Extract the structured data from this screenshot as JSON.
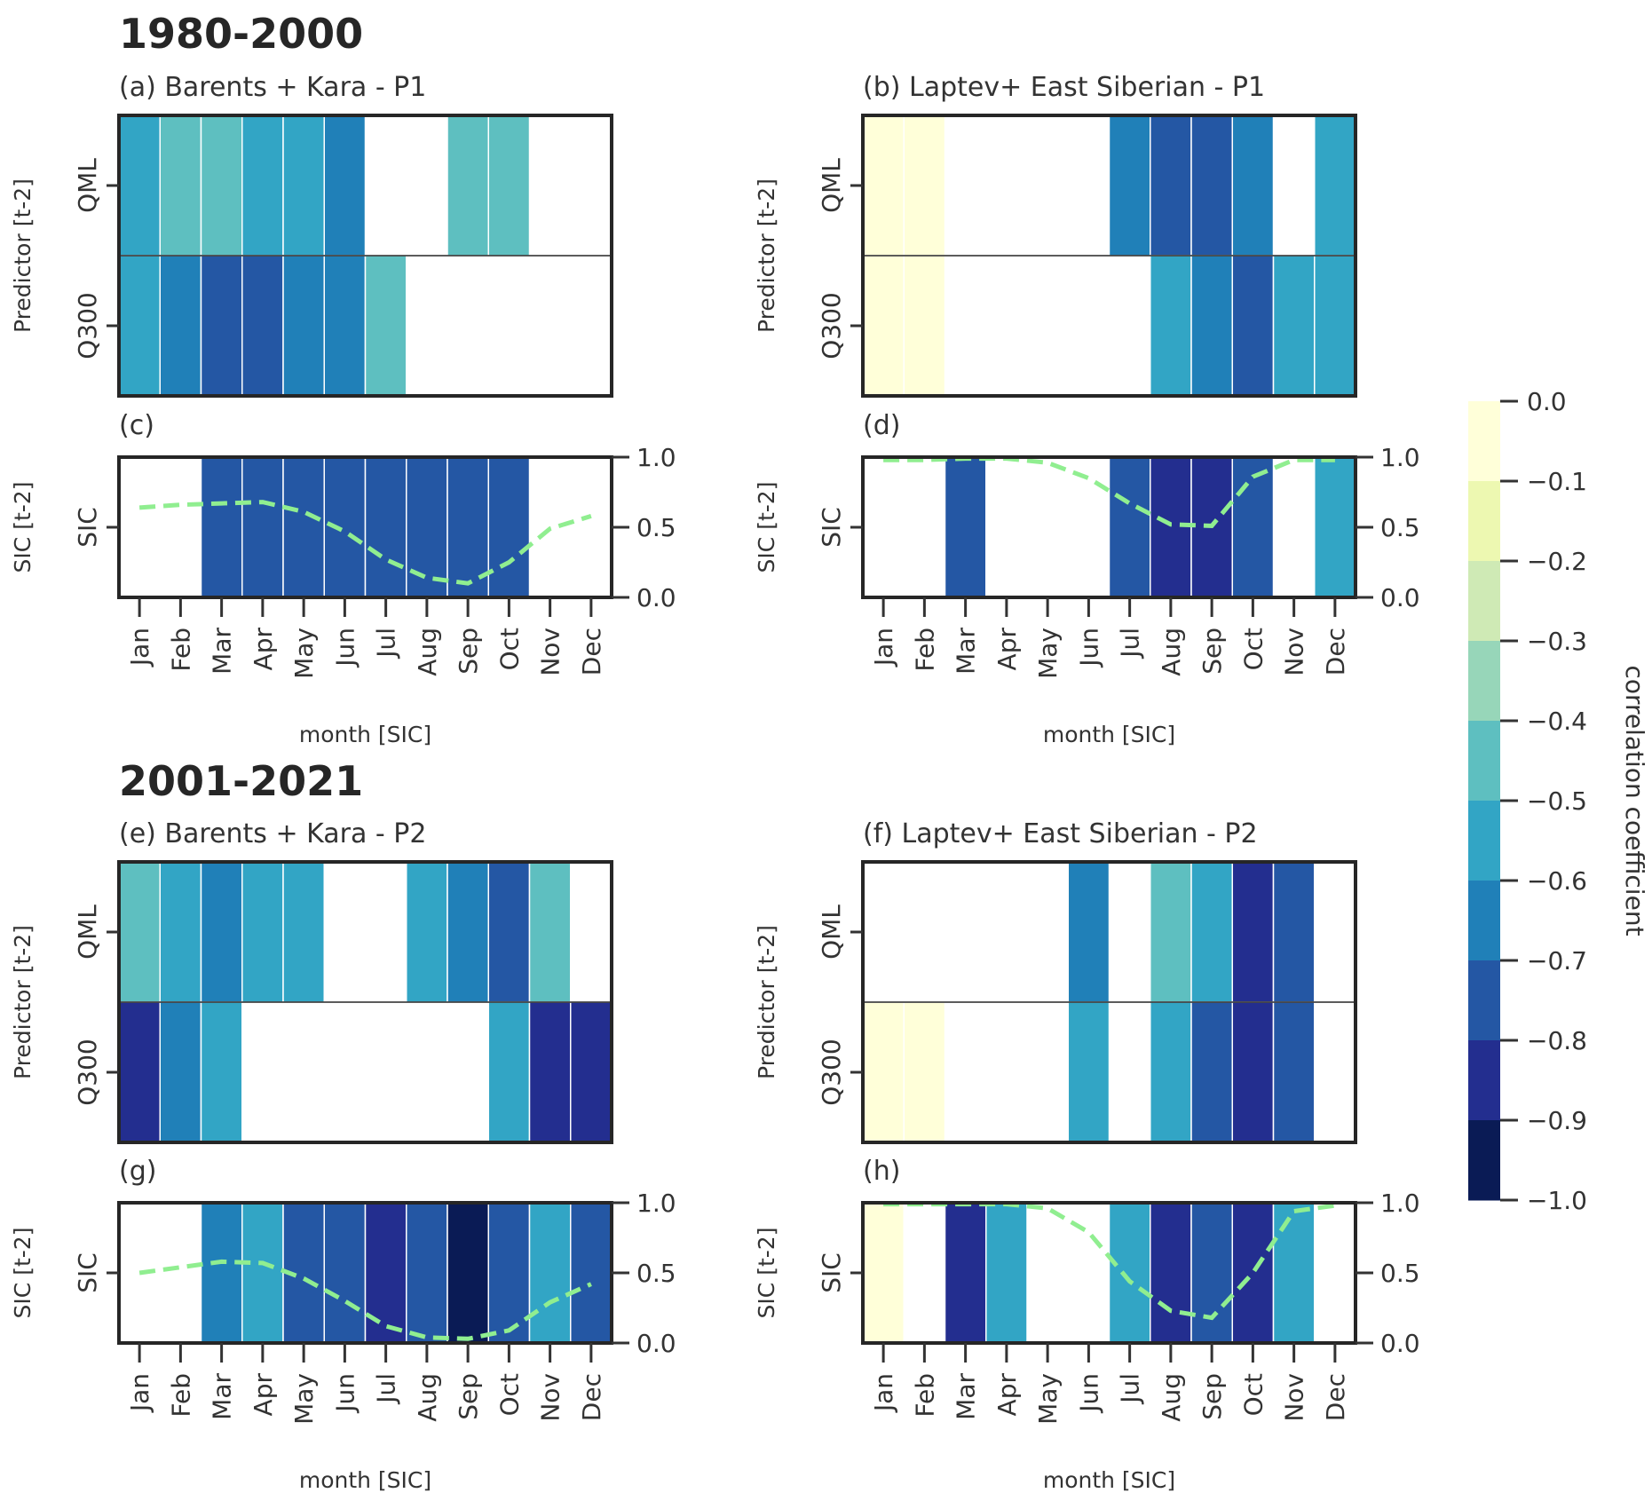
{
  "chart_data": {
    "type": "heatmap",
    "periods": [
      {
        "title": "1980-2000"
      },
      {
        "title": "2001-2021"
      }
    ],
    "months": [
      "Jan",
      "Feb",
      "Mar",
      "Apr",
      "May",
      "Jun",
      "Jul",
      "Aug",
      "Sep",
      "Oct",
      "Nov",
      "Dec"
    ],
    "xlabel": "month [SIC]",
    "colorbar": {
      "label": "correlation coefficient",
      "range": [
        -1.0,
        0.0
      ],
      "ticks": [
        0.0,
        -0.1,
        -0.2,
        -0.3,
        -0.4,
        -0.5,
        -0.6,
        -0.7,
        -0.8,
        -0.9,
        -1.0
      ],
      "tick_labels": [
        "0.0",
        "−0.1",
        "−0.2",
        "−0.3",
        "−0.4",
        "−0.5",
        "−0.6",
        "−0.7",
        "−0.8",
        "−0.9",
        "−1.0"
      ],
      "colors": [
        "#ffffd9",
        "#edf8b1",
        "#cfeab5",
        "#97d6b9",
        "#5ebfc0",
        "#32a5c5",
        "#2080b8",
        "#2457a4",
        "#232e8f",
        "#0a1b55"
      ]
    },
    "line_color": "#90ee90",
    "right_axis": {
      "ticks": [
        0.0,
        0.5,
        1.0
      ],
      "tick_labels": [
        "0.0",
        "0.5",
        "1.0"
      ],
      "range": [
        0,
        1
      ]
    },
    "heatmap_panels": [
      {
        "id": "a",
        "title": "(a) Barents + Kara - P1",
        "ylabel": "Predictor [t-2]",
        "rows": [
          "QML",
          "Q300"
        ],
        "values": [
          [
            -0.55,
            -0.45,
            -0.45,
            -0.55,
            -0.55,
            -0.65,
            null,
            null,
            -0.45,
            -0.45,
            null,
            null
          ],
          [
            -0.55,
            -0.65,
            -0.75,
            -0.75,
            -0.65,
            -0.65,
            -0.45,
            null,
            null,
            null,
            null,
            null
          ]
        ]
      },
      {
        "id": "b",
        "title": "(b) Laptev+ East Siberian - P1",
        "ylabel": "Predictor [t-2]",
        "rows": [
          "QML",
          "Q300"
        ],
        "values": [
          [
            -0.05,
            -0.05,
            null,
            null,
            null,
            null,
            -0.65,
            -0.75,
            -0.75,
            -0.65,
            null,
            -0.55
          ],
          [
            -0.05,
            -0.05,
            null,
            null,
            null,
            null,
            null,
            -0.55,
            -0.65,
            -0.75,
            -0.55,
            -0.55
          ]
        ]
      },
      {
        "id": "e",
        "title": "(e) Barents + Kara - P2",
        "ylabel": "Predictor [t-2]",
        "rows": [
          "QML",
          "Q300"
        ],
        "values": [
          [
            -0.45,
            -0.55,
            -0.65,
            -0.55,
            -0.55,
            null,
            null,
            -0.55,
            -0.65,
            -0.75,
            -0.45,
            null
          ],
          [
            -0.85,
            -0.65,
            -0.55,
            null,
            null,
            null,
            null,
            null,
            null,
            -0.55,
            -0.85,
            -0.85
          ]
        ]
      },
      {
        "id": "f",
        "title": "(f) Laptev+ East Siberian - P2",
        "ylabel": "Predictor [t-2]",
        "rows": [
          "QML",
          "Q300"
        ],
        "values": [
          [
            null,
            null,
            null,
            null,
            null,
            -0.65,
            null,
            -0.45,
            -0.55,
            -0.85,
            -0.75,
            null
          ],
          [
            -0.05,
            -0.05,
            null,
            null,
            null,
            -0.55,
            null,
            -0.55,
            -0.75,
            -0.85,
            -0.75,
            null
          ]
        ]
      }
    ],
    "sic_panels": [
      {
        "id": "c",
        "title": "(c)",
        "ylabel": "SIC [t-2]",
        "row": "SIC",
        "values": [
          null,
          null,
          -0.75,
          -0.75,
          -0.75,
          -0.75,
          -0.75,
          -0.75,
          -0.75,
          -0.75,
          null,
          null
        ],
        "sic_mean": [
          0.64,
          0.66,
          0.67,
          0.68,
          0.61,
          0.47,
          0.27,
          0.14,
          0.1,
          0.25,
          0.49,
          0.58
        ]
      },
      {
        "id": "d",
        "title": "(d)",
        "ylabel": "SIC [t-2]",
        "row": "SIC",
        "values": [
          null,
          null,
          -0.75,
          null,
          null,
          null,
          -0.75,
          -0.85,
          -0.85,
          -0.75,
          null,
          -0.55
        ],
        "sic_mean": [
          0.98,
          0.98,
          0.99,
          0.99,
          0.96,
          0.85,
          0.67,
          0.52,
          0.51,
          0.86,
          0.98,
          0.98
        ]
      },
      {
        "id": "g",
        "title": "(g)",
        "ylabel": "SIC [t-2]",
        "row": "SIC",
        "values": [
          null,
          null,
          -0.65,
          -0.55,
          -0.75,
          -0.75,
          -0.85,
          -0.75,
          -0.95,
          -0.75,
          -0.55,
          -0.75
        ],
        "sic_mean": [
          0.5,
          0.54,
          0.58,
          0.57,
          0.46,
          0.3,
          0.12,
          0.04,
          0.03,
          0.09,
          0.29,
          0.42
        ]
      },
      {
        "id": "h",
        "title": "(h)",
        "ylabel": "SIC [t-2]",
        "row": "SIC",
        "values": [
          -0.05,
          null,
          -0.85,
          -0.55,
          null,
          null,
          -0.55,
          -0.85,
          -0.75,
          -0.85,
          -0.55,
          null
        ],
        "sic_mean": [
          0.99,
          0.99,
          0.99,
          0.99,
          0.96,
          0.79,
          0.44,
          0.23,
          0.18,
          0.5,
          0.94,
          0.98
        ]
      }
    ]
  }
}
